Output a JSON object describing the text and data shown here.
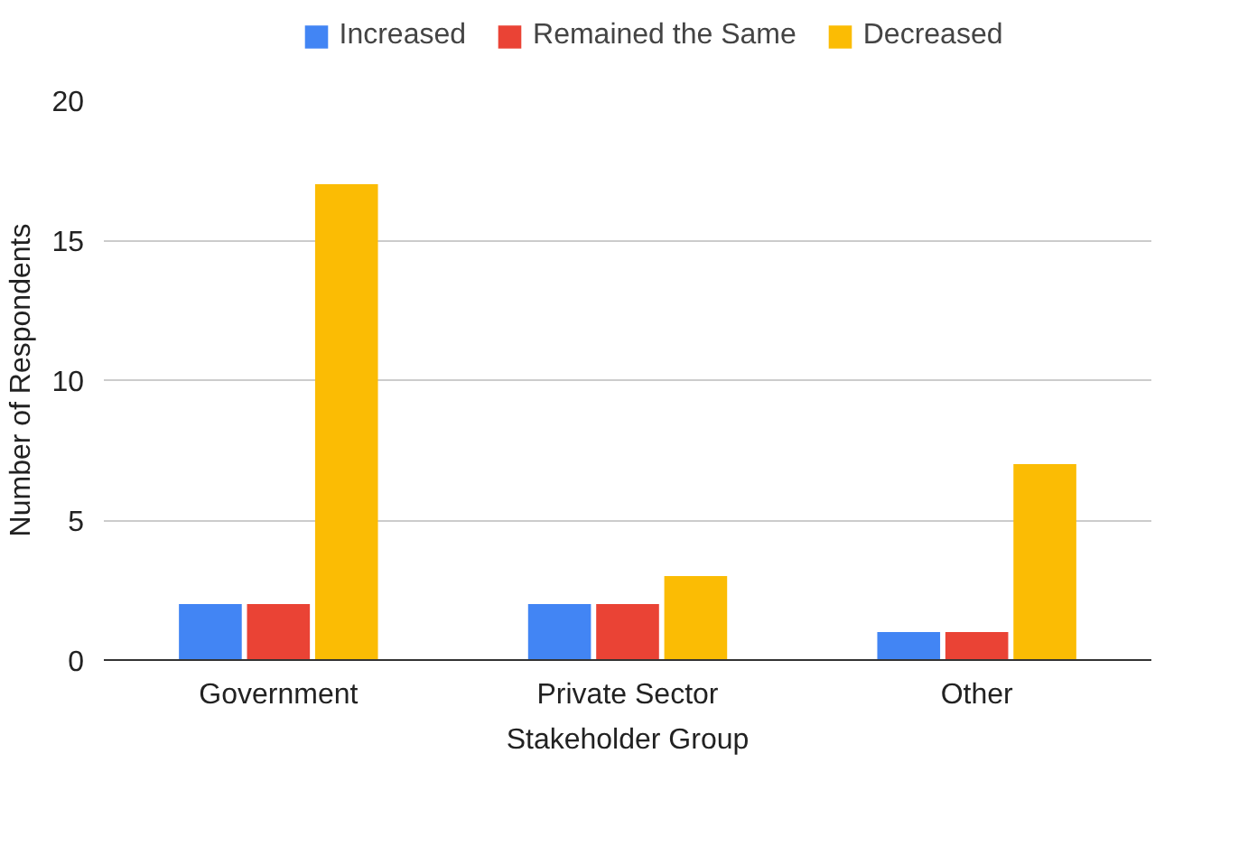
{
  "chart_data": {
    "type": "bar",
    "xlabel": "Stakeholder Group",
    "ylabel": "Number of Respondents",
    "categories": [
      "Government",
      "Private Sector",
      "Other"
    ],
    "series": [
      {
        "name": "Increased",
        "color": "#4285f4",
        "values": [
          2,
          2,
          1
        ]
      },
      {
        "name": "Remained the Same",
        "color": "#ea4335",
        "values": [
          2,
          2,
          1
        ]
      },
      {
        "name": "Decreased",
        "color": "#fbbc04",
        "values": [
          17,
          3,
          7
        ]
      }
    ],
    "ylim": [
      0,
      20
    ],
    "yticks": [
      0,
      5,
      10,
      15,
      20
    ],
    "grid": "y",
    "legend": "top"
  }
}
